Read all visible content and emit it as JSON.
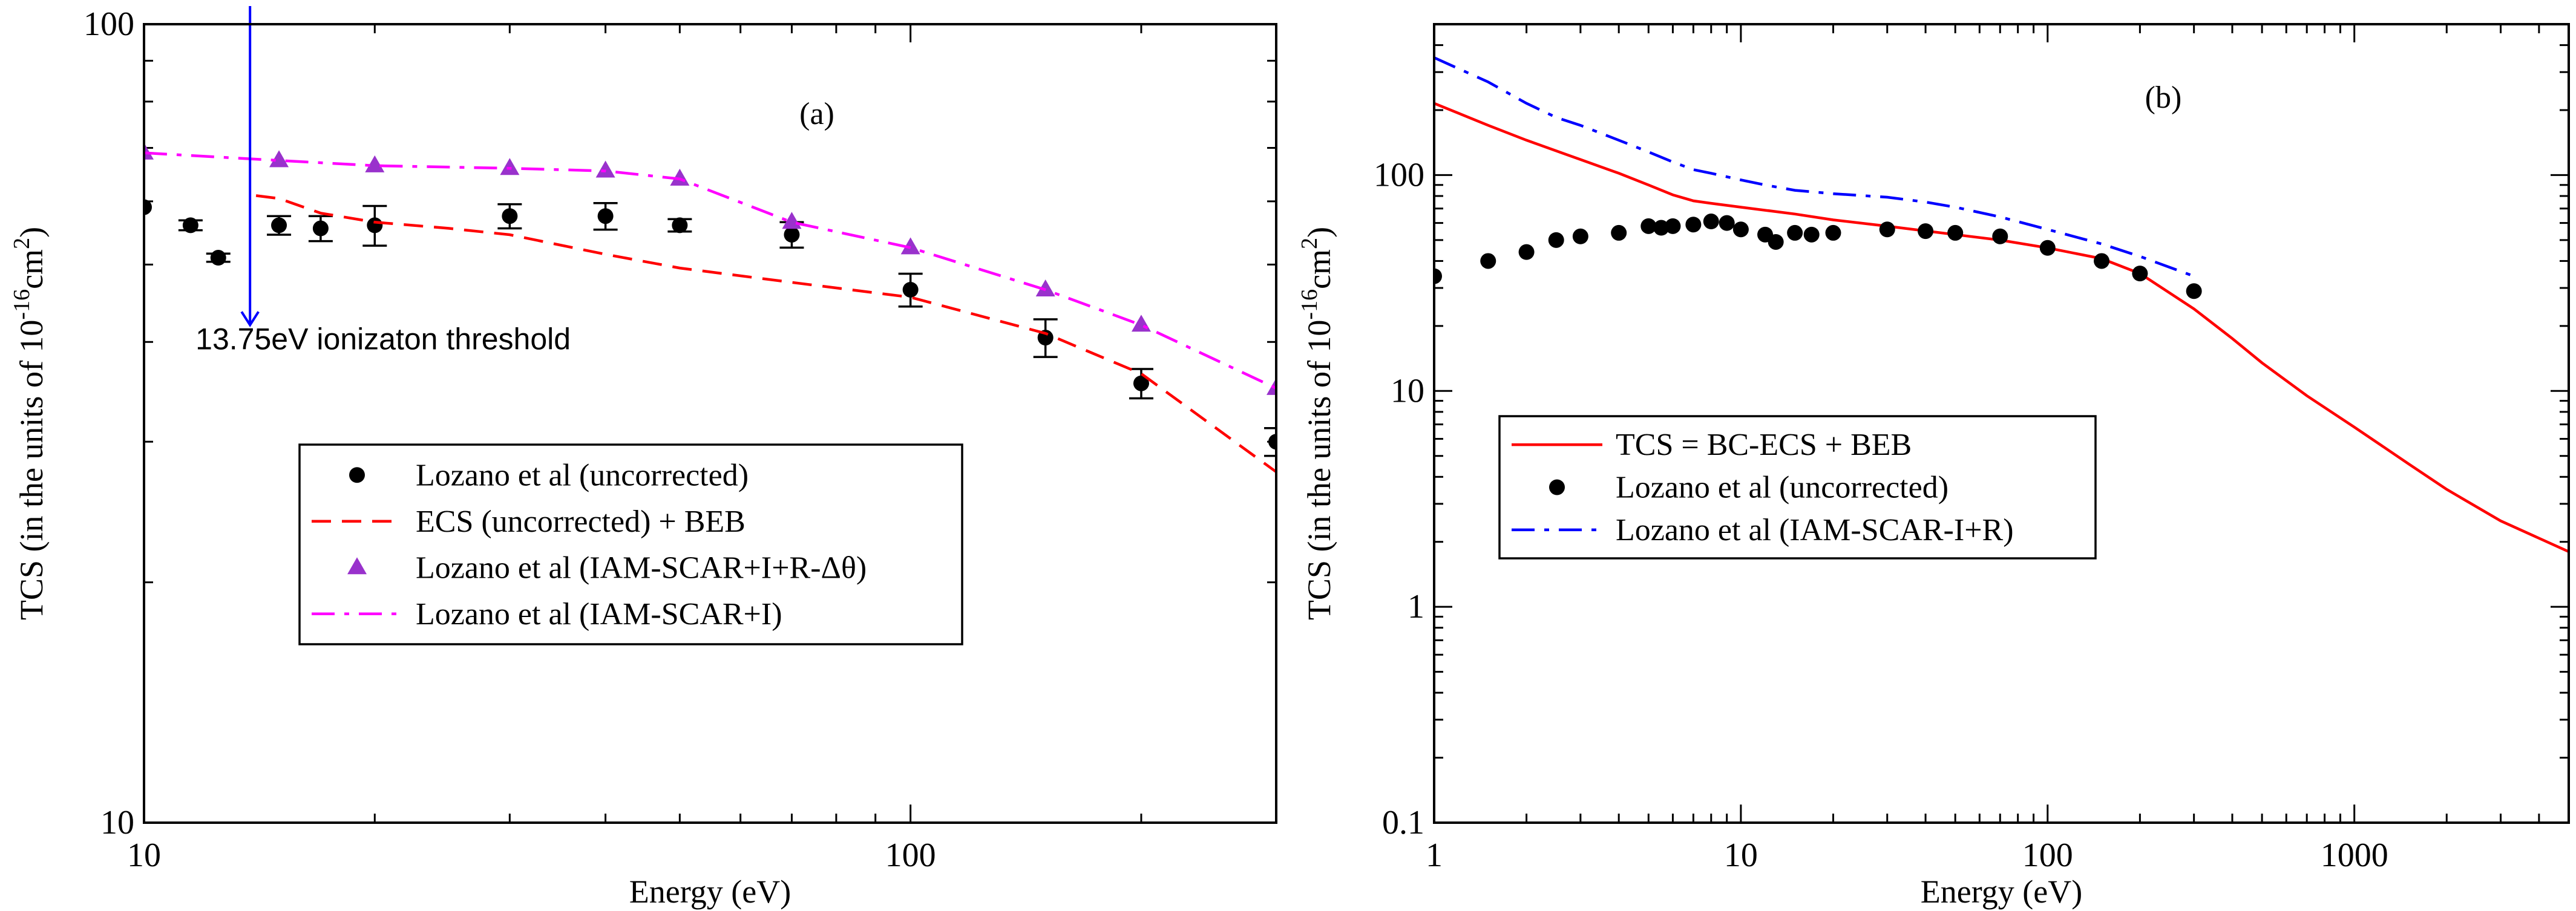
{
  "colors": {
    "red": "#ff0000",
    "magenta": "#ff00ff",
    "purple": "#9932cc",
    "blue": "#0000ff",
    "black": "#000000"
  },
  "chart_data": [
    {
      "type": "line",
      "panel_label": "(a)",
      "xlabel": "Energy (eV)",
      "ylabel_main": "TCS (in the units of 10",
      "ylabel_sup": "-16",
      "ylabel_unit": "cm",
      "ylabel_sup2": "2",
      "ylabel_end": ")",
      "xscale": "log",
      "yscale": "log",
      "xlim": [
        10,
        300
      ],
      "ylim": [
        10,
        100
      ],
      "x_ticks": [
        {
          "value": 10,
          "label": "10"
        },
        {
          "value": 100,
          "label": "100"
        }
      ],
      "y_ticks": [
        {
          "value": 10,
          "label": "10"
        },
        {
          "value": 100,
          "label": "100"
        }
      ],
      "legend_position": "center",
      "annotation": {
        "text": "13.75eV ionizaton threshold",
        "x": 13.75,
        "arrow_from_y": 100,
        "arrow_to_y": 42
      },
      "series": [
        {
          "name": "Lozano et al (uncorrected)",
          "kind": "points",
          "marker": "circle",
          "color": "#000000",
          "x": [
            10,
            11.5,
            12.5,
            15,
            17,
            20,
            30,
            40,
            50,
            70,
            100,
            150,
            200,
            300
          ],
          "y": [
            59,
            56,
            51,
            56,
            55.5,
            56,
            57.5,
            57.5,
            56,
            54.5,
            46.5,
            40.5,
            35.5,
            30
          ],
          "yerr": [
            0,
            0.8,
            0.6,
            1.5,
            2,
            3.2,
            2,
            2.2,
            1,
            2,
            2.2,
            2.2,
            1.5,
            1.2
          ]
        },
        {
          "name": "ECS (uncorrected) + BEB",
          "kind": "line",
          "style": "dashed",
          "color": "#ff0000",
          "x": [
            14,
            15,
            17,
            20,
            25,
            30,
            40,
            50,
            70,
            100,
            150,
            200,
            300
          ],
          "y": [
            61,
            60.5,
            58,
            56.5,
            55.5,
            54.5,
            51.5,
            49.5,
            47.5,
            45.5,
            41,
            36.5,
            27.5
          ]
        },
        {
          "name": "Lozano et al (IAM-SCAR+I+R-Δθ)",
          "kind": "points",
          "marker": "triangle",
          "color": "#9932cc",
          "x": [
            10,
            15,
            20,
            30,
            40,
            50,
            70,
            100,
            150,
            200,
            300
          ],
          "y": [
            69,
            67.5,
            66.5,
            66,
            65.5,
            64,
            56.5,
            52.5,
            46.5,
            42,
            35
          ]
        },
        {
          "name": "Lozano et al (IAM-SCAR+I)",
          "kind": "line",
          "style": "dashdot",
          "color": "#ff00ff",
          "x": [
            10,
            15,
            20,
            30,
            40,
            50,
            70,
            100,
            150,
            200,
            300
          ],
          "y": [
            69,
            67.5,
            66.5,
            66,
            65.5,
            64,
            56.5,
            52.5,
            46.5,
            42,
            35
          ]
        }
      ]
    },
    {
      "type": "line",
      "panel_label": "(b)",
      "xlabel": "Energy (eV)",
      "ylabel_main": "TCS (in the units of 10",
      "ylabel_sup": "-16",
      "ylabel_unit": "cm",
      "ylabel_sup2": "2",
      "ylabel_end": ")",
      "xscale": "log",
      "yscale": "log",
      "xlim": [
        1,
        5000
      ],
      "ylim": [
        0.1,
        500
      ],
      "x_ticks": [
        {
          "value": 1,
          "label": "1"
        },
        {
          "value": 10,
          "label": "10"
        },
        {
          "value": 100,
          "label": "100"
        },
        {
          "value": 1000,
          "label": "1000"
        }
      ],
      "y_ticks": [
        {
          "value": 0.1,
          "label": "0.1"
        },
        {
          "value": 1,
          "label": "1"
        },
        {
          "value": 10,
          "label": "10"
        },
        {
          "value": 100,
          "label": "100"
        }
      ],
      "legend_position": "center-left",
      "series": [
        {
          "name": "TCS = BC-ECS + BEB",
          "kind": "line",
          "style": "solid",
          "color": "#ff0000",
          "x": [
            1,
            1.5,
            2,
            3,
            4,
            5,
            6,
            7,
            8,
            10,
            15,
            20,
            30,
            50,
            70,
            100,
            150,
            200,
            300,
            400,
            500,
            700,
            1000,
            1500,
            2000,
            3000,
            5000
          ],
          "y": [
            215,
            170,
            145,
            118,
            102,
            90,
            81,
            76,
            74,
            71,
            66,
            62,
            58,
            53,
            50,
            46,
            41,
            35,
            24,
            17.5,
            13.5,
            9.5,
            6.8,
            4.6,
            3.5,
            2.5,
            1.8
          ]
        },
        {
          "name": "Lozano et al (uncorrected)",
          "kind": "points",
          "marker": "circle",
          "color": "#000000",
          "x": [
            1,
            1.5,
            2,
            2.5,
            3,
            4,
            5,
            5.5,
            6,
            7,
            8,
            9,
            10,
            12,
            13,
            15,
            17,
            20,
            30,
            40,
            50,
            70,
            100,
            150,
            200,
            300
          ],
          "y": [
            34,
            40,
            44,
            50,
            52,
            54,
            58,
            57,
            58,
            59,
            61,
            60,
            56,
            53,
            49,
            54,
            53,
            54,
            56,
            55,
            54,
            52,
            46,
            40,
            35,
            29
          ]
        },
        {
          "name": "Lozano et al (IAM-SCAR-I+R)",
          "kind": "line",
          "style": "dashdot",
          "color": "#0000ff",
          "x": [
            1,
            1.5,
            2,
            2.5,
            3,
            4,
            5,
            6,
            7,
            8,
            10,
            12,
            15,
            20,
            30,
            40,
            50,
            70,
            100,
            150,
            200,
            300
          ],
          "y": [
            350,
            270,
            215,
            185,
            170,
            145,
            128,
            115,
            106,
            102,
            95,
            90,
            85,
            82,
            79,
            75,
            71,
            64,
            56,
            48,
            42,
            34
          ]
        }
      ]
    }
  ]
}
